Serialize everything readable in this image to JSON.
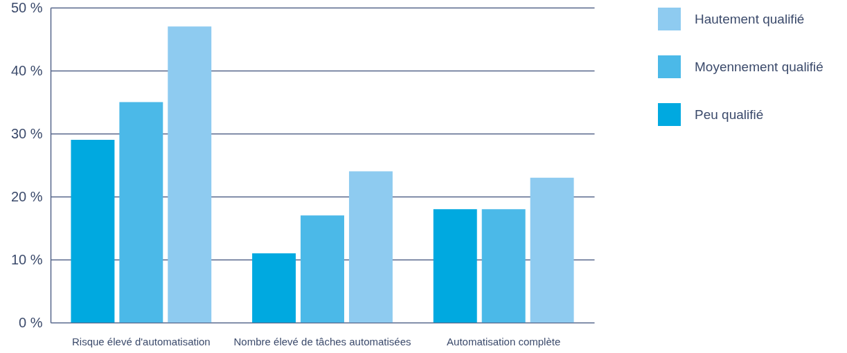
{
  "chart_data": {
    "type": "bar",
    "categories": [
      "Risque élevé d'automatisation",
      "Nombre élevé de tâches automatisées",
      "Automatisation complète"
    ],
    "series": [
      {
        "name": "Peu qualifié",
        "color": "#00a9e0",
        "values": [
          29,
          11,
          18
        ]
      },
      {
        "name": "Moyennement qualifié",
        "color": "#4bb9e8",
        "values": [
          35,
          17,
          18
        ]
      },
      {
        "name": "Hautement qualifié",
        "color": "#8ecbf0",
        "values": [
          47,
          24,
          23
        ]
      }
    ],
    "ylim": [
      0,
      50
    ],
    "yticks": [
      {
        "value": 0,
        "label": "0 %"
      },
      {
        "value": 10,
        "label": "10 %"
      },
      {
        "value": 20,
        "label": "20 %"
      },
      {
        "value": 30,
        "label": "30 %"
      },
      {
        "value": 40,
        "label": "40 %"
      },
      {
        "value": 50,
        "label": "50 %"
      }
    ],
    "grid": "y",
    "legend": "top right"
  }
}
